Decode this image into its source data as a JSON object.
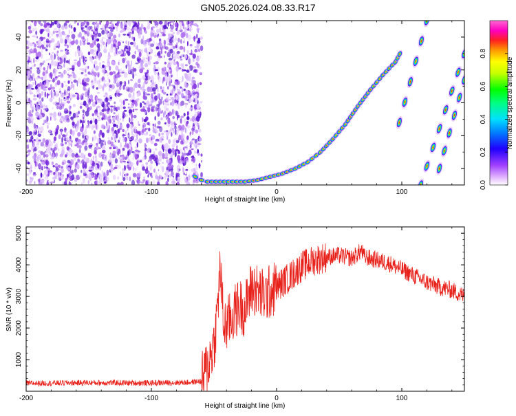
{
  "figure_title": "GN05.2026.024.08.33.R17",
  "colors": {
    "snr_line": "#e8201a",
    "frame": "#000000",
    "spectrogram_noise": "#8a2be2",
    "colormap": [
      "#ffffff",
      "#b04ae0",
      "#6a0fd6",
      "#3a00ff",
      "#0044ff",
      "#00c8ff",
      "#00e6a0",
      "#00ff00",
      "#c8ff00",
      "#ffff00",
      "#ff9900",
      "#ff2020",
      "#ff00c8",
      "#ff66cc"
    ]
  },
  "chart_data": [
    {
      "type": "heatmap",
      "name": "spectrogram",
      "xlabel": "Height of straight line (km)",
      "ylabel": "Frequency (Hz)",
      "xlim": [
        -200,
        150
      ],
      "ylim": [
        -50,
        50
      ],
      "xticks": [
        -200,
        -100,
        0,
        100
      ],
      "xtick_labels": [
        "-200",
        "-100",
        "0",
        "100"
      ],
      "yticks": [
        -40,
        -20,
        0,
        20,
        40
      ],
      "ytick_labels": [
        "-40",
        "-20",
        "0",
        "20",
        "40"
      ],
      "noise_region_x": [
        -200,
        -62
      ],
      "main_trace": {
        "description": "bright ridge rising from bottom",
        "x": [
          -65,
          -60,
          -55,
          -45,
          -35,
          -25,
          -15,
          -5,
          5,
          15,
          25,
          35,
          45,
          55,
          65,
          75,
          85,
          95,
          100
        ],
        "y": [
          -45,
          -47,
          -48,
          -48,
          -48,
          -48,
          -47,
          -45,
          -43,
          -40,
          -36,
          -30,
          -22,
          -13,
          -2,
          8,
          17,
          25,
          32
        ]
      },
      "folded_traces": [
        {
          "x": [
            98,
            120
          ],
          "y": [
            -12,
            50
          ]
        },
        {
          "x": [
            115,
            150
          ],
          "y": [
            -50,
            30
          ]
        },
        {
          "x": [
            130,
            150
          ],
          "y": [
            -40,
            14
          ]
        }
      ],
      "colorbar": {
        "label": "Normalized spectral amplitude",
        "range": [
          0.0,
          1.0
        ],
        "ticks": [
          0.0,
          0.2,
          0.4,
          0.6,
          0.8
        ],
        "tick_labels": [
          "0.0",
          "0.2",
          "0.4",
          "0.6",
          "0.8"
        ]
      }
    },
    {
      "type": "line",
      "name": "snr",
      "xlabel": "Height of straight line (km)",
      "ylabel": "SNR (10 * v/v)",
      "xlim": [
        -200,
        150
      ],
      "ylim": [
        0,
        5200
      ],
      "xticks": [
        -200,
        -100,
        0,
        100
      ],
      "xtick_labels": [
        "-200",
        "-100",
        "0",
        "100"
      ],
      "yticks": [
        1000,
        2000,
        3000,
        4000,
        5000
      ],
      "ytick_labels": [
        "1000",
        "2000",
        "3000",
        "4000",
        "5000"
      ],
      "series": [
        {
          "name": "SNR",
          "x": [
            -200,
            -150,
            -100,
            -70,
            -60,
            -55,
            -50,
            -48,
            -45,
            -42,
            -40,
            -35,
            -30,
            -25,
            -20,
            -10,
            0,
            10,
            20,
            30,
            40,
            50,
            60,
            68,
            70,
            80,
            90,
            100,
            110,
            120,
            130,
            140,
            150
          ],
          "y": [
            250,
            270,
            260,
            280,
            320,
            800,
            1500,
            2200,
            3900,
            2000,
            2100,
            2400,
            2700,
            2600,
            3300,
            3000,
            3300,
            3600,
            3950,
            4150,
            4250,
            4300,
            4200,
            4450,
            4250,
            4150,
            4050,
            3850,
            3650,
            3450,
            3300,
            3200,
            3000
          ]
        }
      ]
    }
  ]
}
